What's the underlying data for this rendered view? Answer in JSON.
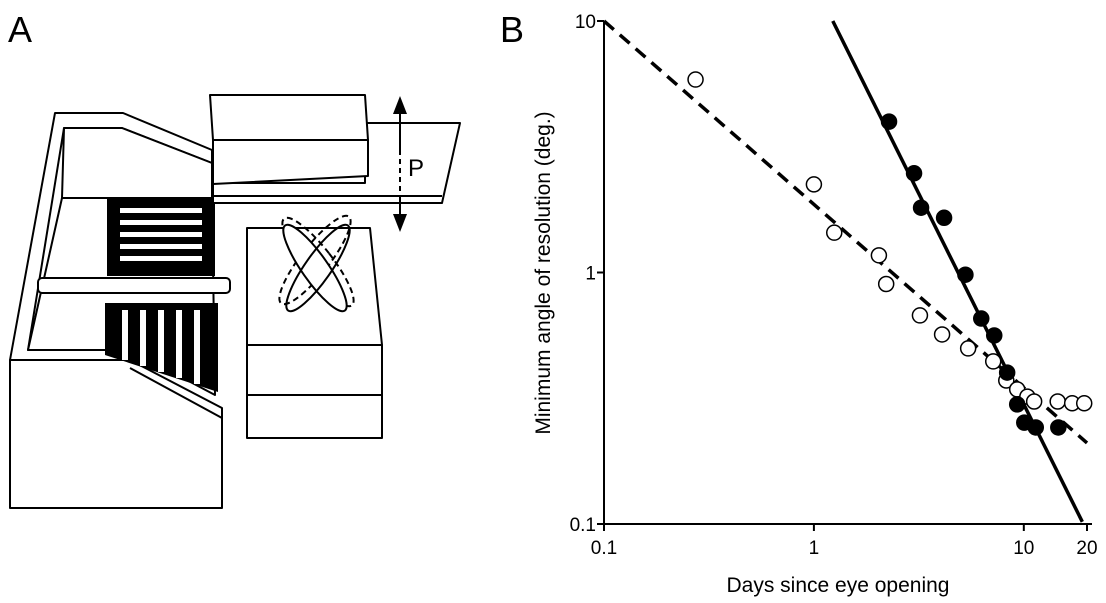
{
  "panel_a": {
    "label": "A",
    "pendulum_label": "P"
  },
  "chart_data": {
    "type": "scatter",
    "panel_label": "B",
    "x_label": "Days since eye opening",
    "y_label": "Minimum angle of resolution (deg.)",
    "xlog": true,
    "ylog": true,
    "xlim": [
      0.1,
      20
    ],
    "ylim": [
      0.1,
      10
    ],
    "xticks": [
      0.1,
      1,
      10,
      20
    ],
    "yticks": [
      0.1,
      1,
      10
    ],
    "series": [
      {
        "marker": "open",
        "color": "#000000",
        "x": [
          0.273,
          1.0,
          1.25,
          2.04,
          2.21,
          3.2,
          4.08,
          5.43,
          7.15,
          8.25,
          9.3,
          10.4,
          11.2,
          14.5,
          17.0,
          19.4
        ],
        "values": [
          5.85,
          2.24,
          1.44,
          1.17,
          0.9,
          0.675,
          0.567,
          0.499,
          0.443,
          0.372,
          0.343,
          0.321,
          0.307,
          0.307,
          0.302,
          0.302
        ]
      },
      {
        "marker": "filled",
        "color": "#000000",
        "x": [
          2.28,
          3.0,
          3.24,
          4.17,
          5.27,
          6.27,
          7.23,
          8.33,
          9.3,
          10.05,
          11.4,
          14.6
        ],
        "values": [
          3.98,
          2.48,
          1.81,
          1.65,
          0.98,
          0.656,
          0.562,
          0.4,
          0.299,
          0.253,
          0.242,
          0.242
        ]
      }
    ],
    "fits": [
      {
        "style": "dashed",
        "color": "#000000",
        "x": [
          0.1,
          20
        ],
        "values": [
          10,
          0.21
        ]
      },
      {
        "style": "solid",
        "color": "#000000",
        "x": [
          1.23,
          19
        ],
        "values": [
          10,
          0.102
        ]
      }
    ]
  }
}
